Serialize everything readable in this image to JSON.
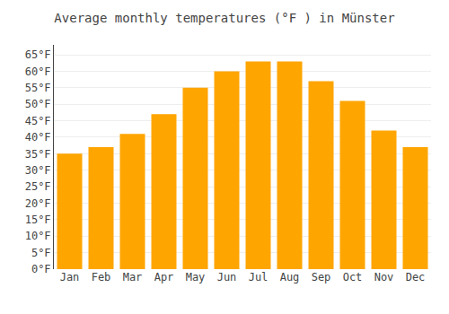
{
  "chart_data": {
    "type": "bar",
    "title": "Average monthly temperatures (°F ) in Münster",
    "categories": [
      "Jan",
      "Feb",
      "Mar",
      "Apr",
      "May",
      "Jun",
      "Jul",
      "Aug",
      "Sep",
      "Oct",
      "Nov",
      "Dec"
    ],
    "values": [
      35,
      37,
      41,
      47,
      55,
      60,
      63,
      63,
      57,
      51,
      42,
      37
    ],
    "color": "#FFA500",
    "ylim": [
      0,
      68
    ],
    "yticks": [
      {
        "value": 0,
        "label": "0°F"
      },
      {
        "value": 5,
        "label": "5°F"
      },
      {
        "value": 10,
        "label": "10°F"
      },
      {
        "value": 15,
        "label": "15°F"
      },
      {
        "value": 20,
        "label": "20°F"
      },
      {
        "value": 25,
        "label": "25°F"
      },
      {
        "value": 30,
        "label": "30°F"
      },
      {
        "value": 35,
        "label": "35°F"
      },
      {
        "value": 40,
        "label": "40°F"
      },
      {
        "value": 45,
        "label": "45°F"
      },
      {
        "value": 50,
        "label": "50°F"
      },
      {
        "value": 55,
        "label": "55°F"
      },
      {
        "value": 60,
        "label": "60°F"
      },
      {
        "value": 65,
        "label": "65°F"
      }
    ],
    "grid": true
  }
}
